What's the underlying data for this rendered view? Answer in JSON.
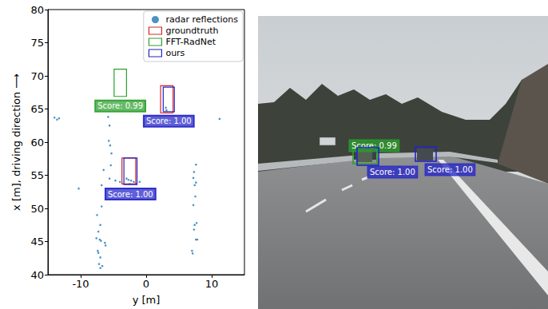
{
  "chart_data": {
    "type": "scatter",
    "xlabel": "y [m]",
    "ylabel": "x [m], driving direction ⟶",
    "xlim": [
      -15,
      15
    ],
    "xticks": [
      -10,
      0,
      10
    ],
    "ylim": [
      40,
      80
    ],
    "yticks": [
      40,
      45,
      50,
      55,
      60,
      65,
      70,
      75,
      80
    ],
    "grid": false,
    "legend": "upper right",
    "series": [
      {
        "name": "radar reflections",
        "type": "scatter",
        "color": "#1f77b4",
        "marker": "point",
        "values": [
          [
            -5.8,
            63.8
          ],
          [
            -5.6,
            62.5
          ],
          [
            -5.7,
            60.2
          ],
          [
            -5.5,
            59.5
          ],
          [
            -5.3,
            58.3
          ],
          [
            -5.4,
            56.5
          ],
          [
            -6.5,
            55.8
          ],
          [
            -5.6,
            54.5
          ],
          [
            -4.7,
            54.2
          ],
          [
            -6.8,
            53.5
          ],
          [
            -6.8,
            50.3
          ],
          [
            -7.5,
            49.0
          ],
          [
            -7.0,
            47.5
          ],
          [
            -7.3,
            46.5
          ],
          [
            -7.6,
            45.5
          ],
          [
            -7.1,
            45.3
          ],
          [
            -6.9,
            45.1
          ],
          [
            -6.3,
            44.8
          ],
          [
            -6.2,
            44.4
          ],
          [
            -7.4,
            43.6
          ],
          [
            -7.3,
            43.3
          ],
          [
            -7.0,
            42.6
          ],
          [
            -7.2,
            41.6
          ],
          [
            -6.7,
            41.3
          ],
          [
            -7.0,
            41.0
          ],
          [
            7.6,
            56.6
          ],
          [
            7.3,
            55.5
          ],
          [
            7.2,
            54.6
          ],
          [
            7.6,
            53.9
          ],
          [
            7.4,
            53.5
          ],
          [
            7.5,
            51.8
          ],
          [
            7.2,
            50.5
          ],
          [
            7.7,
            47.8
          ],
          [
            7.4,
            47.5
          ],
          [
            7.3,
            46.8
          ],
          [
            7.6,
            45.3
          ],
          [
            7.8,
            45.3
          ],
          [
            7.0,
            43.6
          ],
          [
            7.1,
            43.2
          ],
          [
            -3.0,
            54.5
          ],
          [
            -2.7,
            54.3
          ],
          [
            -2.3,
            54.2
          ],
          [
            -1.9,
            54.0
          ],
          [
            -1.0,
            54.0
          ],
          [
            -4.0,
            54.0
          ],
          [
            -2.5,
            53.7
          ],
          [
            -1.5,
            53.7
          ],
          [
            3.0,
            65.2
          ],
          [
            3.1,
            64.8
          ],
          [
            -14.0,
            63.7
          ],
          [
            -13.6,
            63.4
          ],
          [
            -13.3,
            63.6
          ],
          [
            11.2,
            63.5
          ],
          [
            -10.3,
            53.0
          ]
        ]
      },
      {
        "name": "groundtruth",
        "type": "box",
        "color": "#d62728",
        "boxes": [
          {
            "xrange": [
              -3.7,
              -1.6
            ],
            "yrange": [
              53.7,
              57.6
            ]
          },
          {
            "xrange": [
              2.2,
              4.1
            ],
            "yrange": [
              64.4,
              68.5
            ]
          }
        ]
      },
      {
        "name": "FFT-RadNet",
        "type": "box",
        "color": "#2ca02c",
        "boxes": [
          {
            "xrange": [
              -4.9,
              -3.0
            ],
            "yrange": [
              66.9,
              71.0
            ],
            "score": 0.99,
            "label": "Score: 0.99"
          }
        ]
      },
      {
        "name": "ours",
        "type": "box",
        "color": "#2323c8",
        "boxes": [
          {
            "xrange": [
              -3.4,
              -1.4
            ],
            "yrange": [
              53.6,
              57.6
            ],
            "score": 1.0,
            "label": "Score: 1.00"
          },
          {
            "xrange": [
              2.6,
              4.3
            ],
            "yrange": [
              64.6,
              68.3
            ],
            "score": 1.0,
            "label": "Score: 1.00"
          }
        ]
      }
    ]
  },
  "camera_image": {
    "detections": [
      {
        "series": "FFT-RadNet",
        "color": "#2ca02c",
        "score": 0.99,
        "label": "Score: 0.99"
      },
      {
        "series": "ours",
        "color": "#2323c8",
        "score": 1.0,
        "label": "Score: 1.00"
      },
      {
        "series": "ours",
        "color": "#2323c8",
        "score": 1.0,
        "label": "Score: 1.00"
      }
    ]
  }
}
